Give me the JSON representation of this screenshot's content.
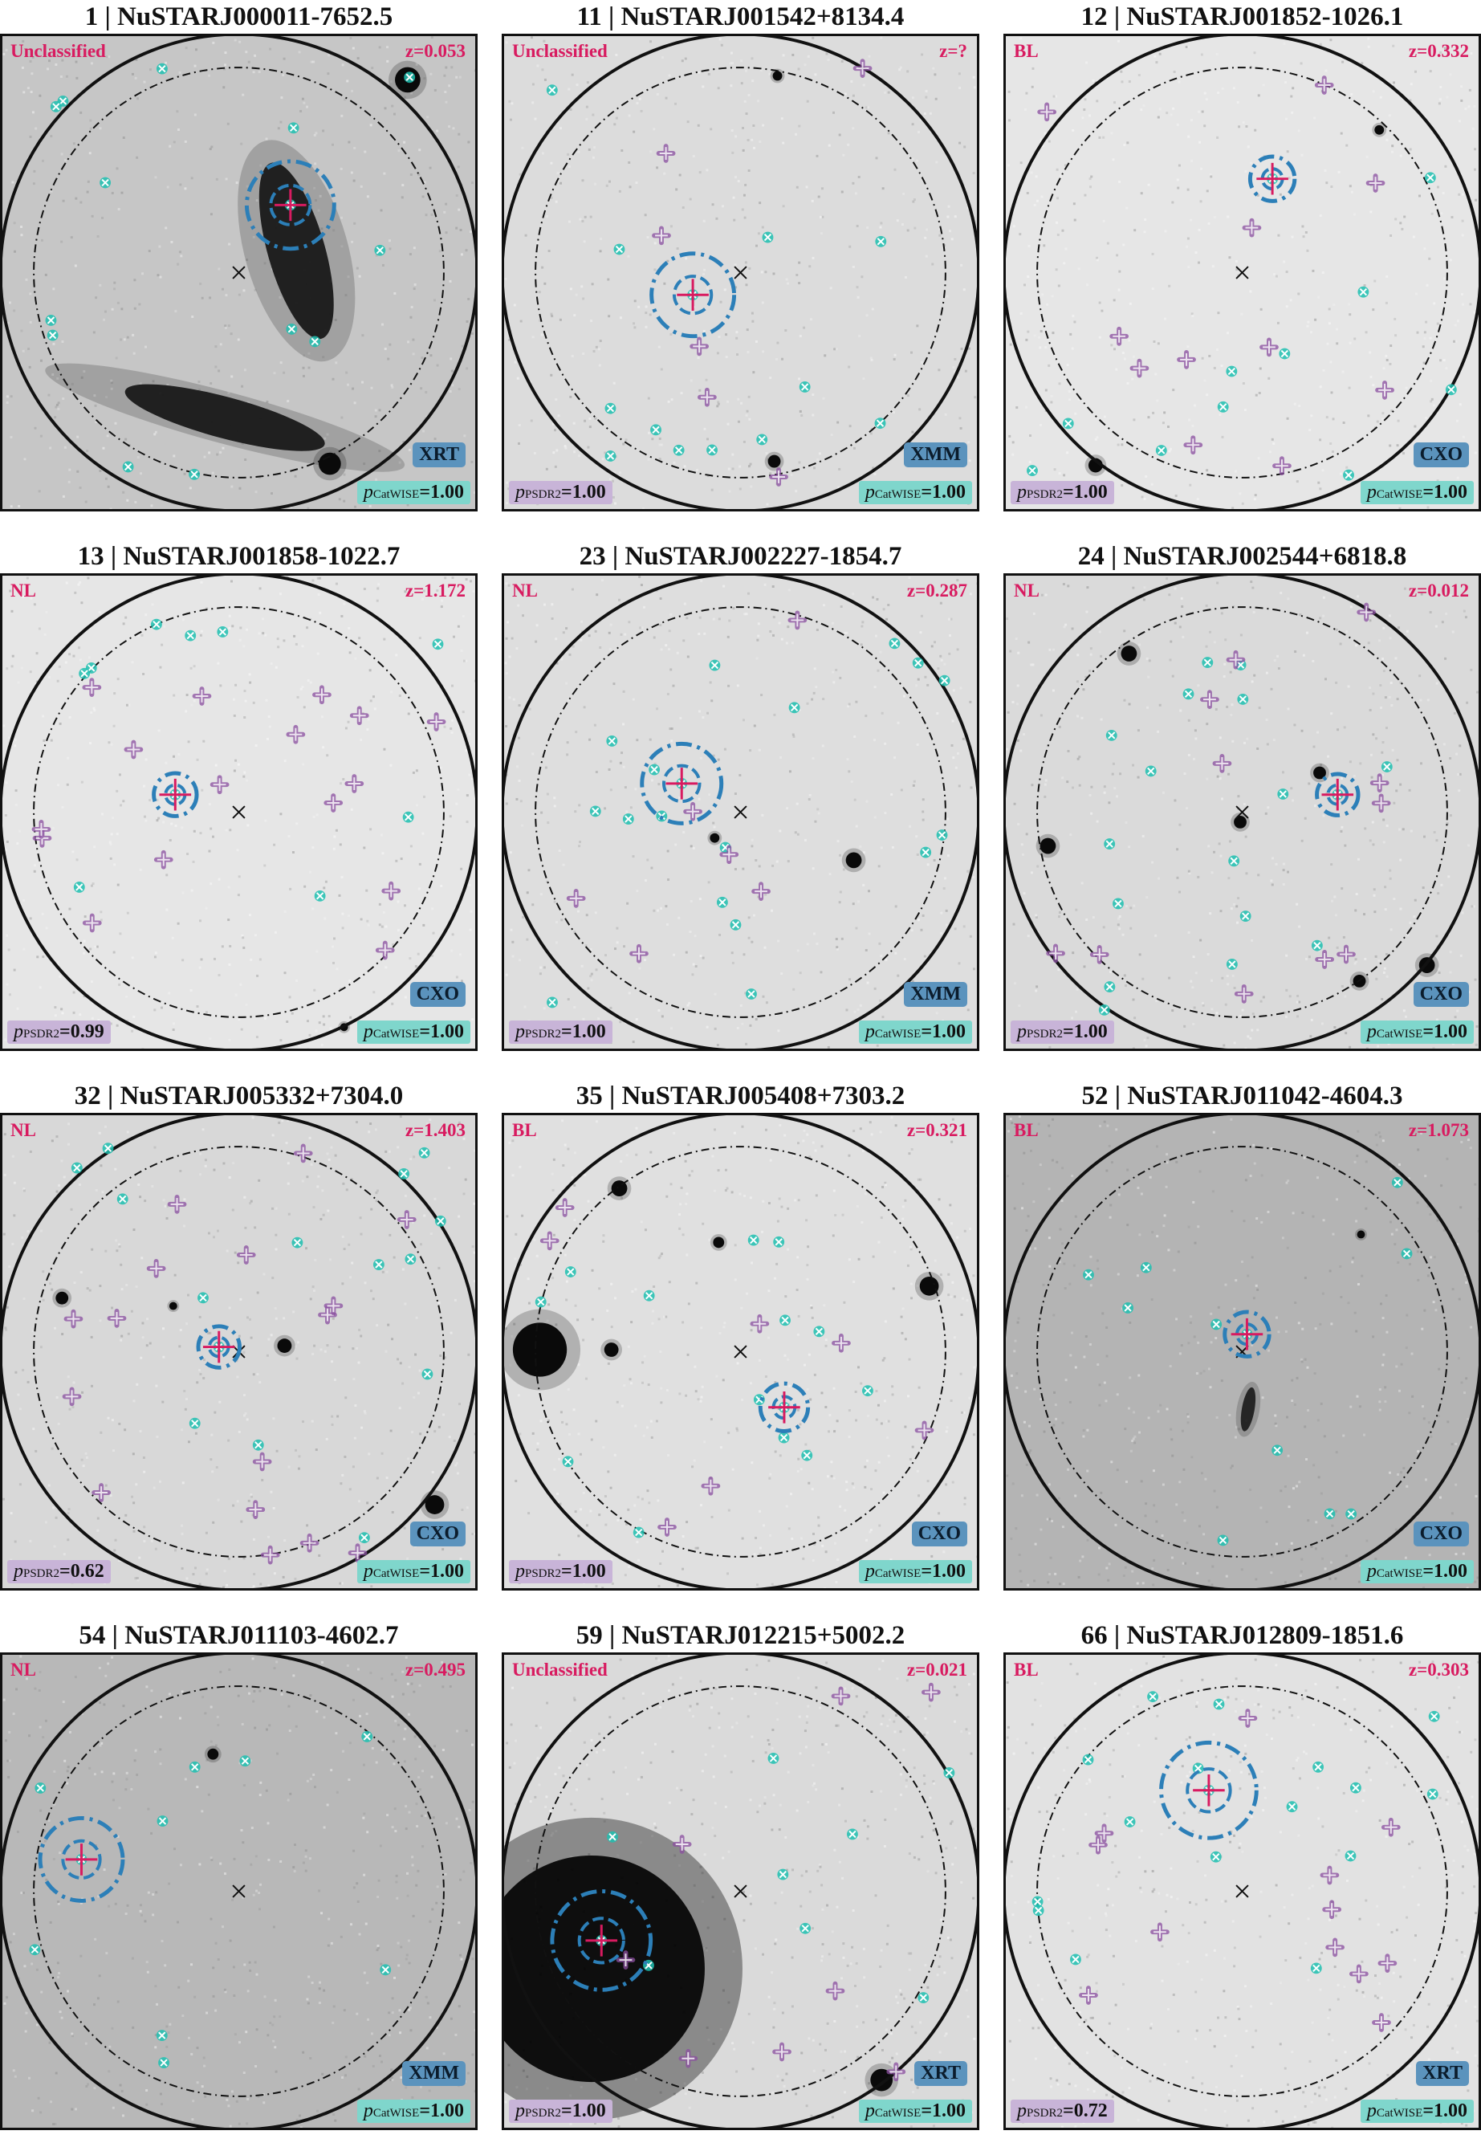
{
  "colors": {
    "title": "#111111",
    "label": "#d81b60",
    "instrument_bg": "#5b93bd",
    "ppsdr_bg": "#c8b4d8",
    "pcatwise_bg": "#7fd6cc",
    "marker_cyan": "#1fbfb0",
    "marker_purple": "#8a4fa0",
    "marker_blue": "#2c7fb8",
    "marker_red": "#d81b60"
  },
  "p_labels": {
    "p": "p",
    "psdr2_sub": "PSDR2",
    "catwise_sub": "CatWISE"
  },
  "panels": [
    {
      "title": "1 | NuSTARJ000011-7652.5",
      "class": "Unclassified",
      "z": "z=0.053",
      "instrument": "XRT",
      "psdr2": "",
      "catwise": "=1.00",
      "bg": "#c6c6c6"
    },
    {
      "title": "11 | NuSTARJ001542+8134.4",
      "class": "Unclassified",
      "z": "z=?",
      "instrument": "XMM",
      "psdr2": "=1.00",
      "catwise": "=1.00",
      "bg": "#dcdcdc"
    },
    {
      "title": "12 | NuSTARJ001852-1026.1",
      "class": "BL",
      "z": "z=0.332",
      "instrument": "CXO",
      "psdr2": "=1.00",
      "catwise": "=1.00",
      "bg": "#e6e6e6"
    },
    {
      "title": "13 | NuSTARJ001858-1022.7",
      "class": "NL",
      "z": "z=1.172",
      "instrument": "CXO",
      "psdr2": "=0.99",
      "catwise": "=1.00",
      "bg": "#e6e6e6"
    },
    {
      "title": "23 | NuSTARJ002227-1854.7",
      "class": "NL",
      "z": "z=0.287",
      "instrument": "XMM",
      "psdr2": "=1.00",
      "catwise": "=1.00",
      "bg": "#dedede"
    },
    {
      "title": "24 | NuSTARJ002544+6818.8",
      "class": "NL",
      "z": "z=0.012",
      "instrument": "CXO",
      "psdr2": "=1.00",
      "catwise": "=1.00",
      "bg": "#dadada"
    },
    {
      "title": "32 | NuSTARJ005332+7304.0",
      "class": "NL",
      "z": "z=1.403",
      "instrument": "CXO",
      "psdr2": "=0.62",
      "catwise": "=1.00",
      "bg": "#d8d8d8"
    },
    {
      "title": "35 | NuSTARJ005408+7303.2",
      "class": "BL",
      "z": "z=0.321",
      "instrument": "CXO",
      "psdr2": "=1.00",
      "catwise": "=1.00",
      "bg": "#e0e0e0"
    },
    {
      "title": "52 | NuSTARJ011042-4604.3",
      "class": "BL",
      "z": "z=1.073",
      "instrument": "CXO",
      "psdr2": "",
      "catwise": "=1.00",
      "bg": "#b4b4b4"
    },
    {
      "title": "54 | NuSTARJ011103-4602.7",
      "class": "NL",
      "z": "z=0.495",
      "instrument": "XMM",
      "psdr2": "",
      "catwise": "=1.00",
      "bg": "#b8b8b8"
    },
    {
      "title": "59 | NuSTARJ012215+5002.2",
      "class": "Unclassified",
      "z": "z=0.021",
      "instrument": "XRT",
      "psdr2": "=1.00",
      "catwise": "=1.00",
      "bg": "#dadada"
    },
    {
      "title": "66 | NuSTARJ012809-1851.6",
      "class": "BL",
      "z": "z=0.303",
      "instrument": "XRT",
      "psdr2": "=0.72",
      "catwise": "=1.00",
      "bg": "#e2e2e2"
    }
  ]
}
